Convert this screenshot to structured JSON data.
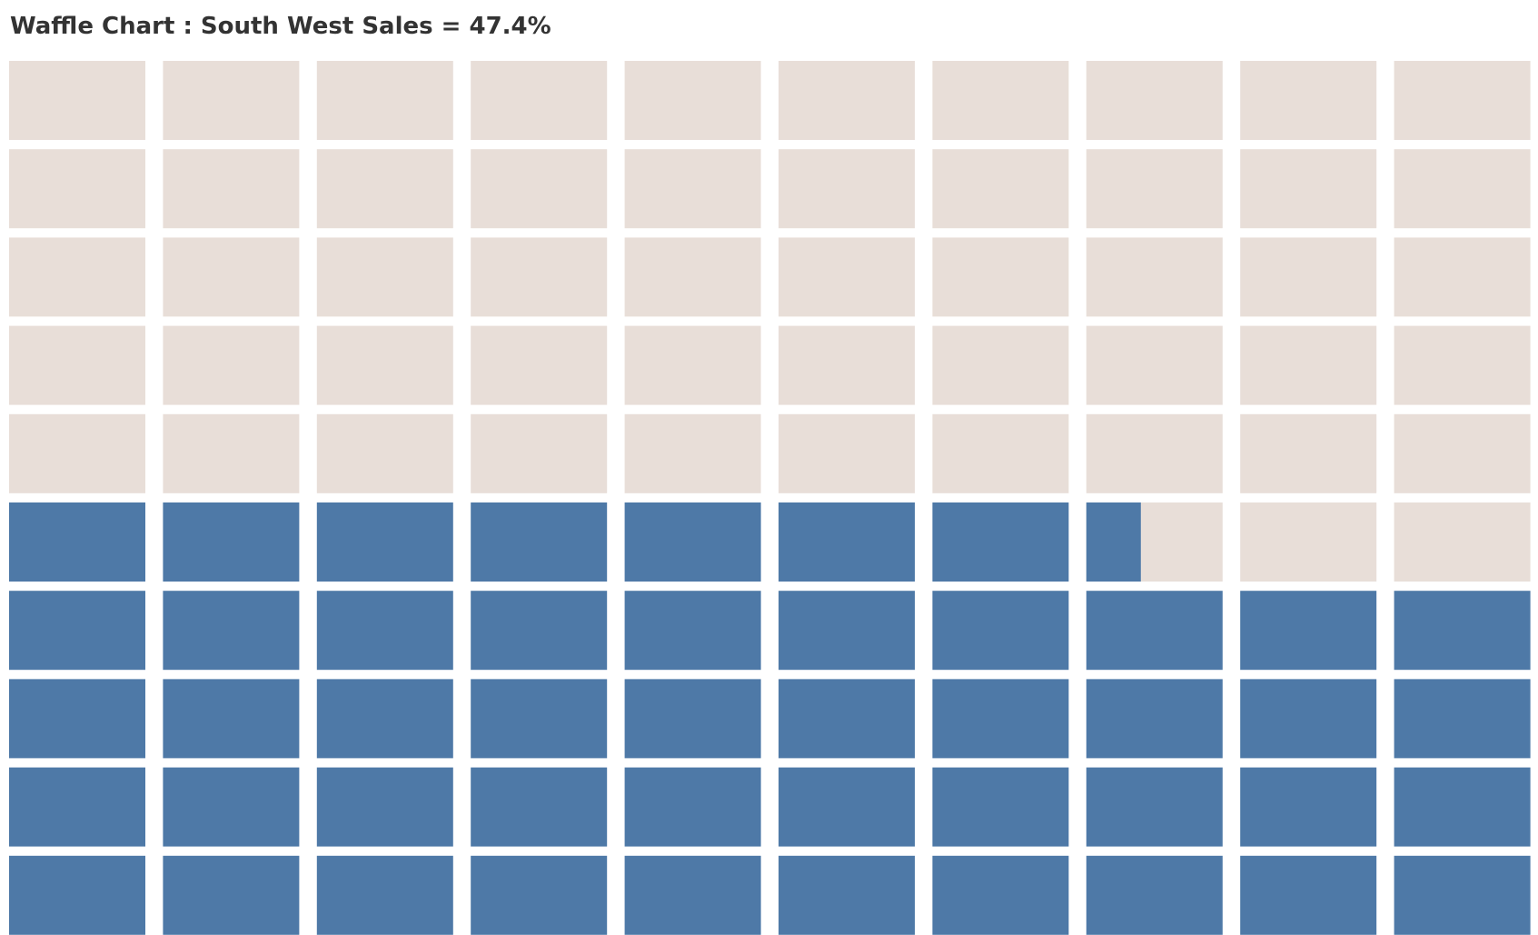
{
  "chart_data": {
    "type": "waffle",
    "title": "Waffle Chart : South West Sales = 47.4%",
    "value_percent": 47.4,
    "grid": {
      "rows": 10,
      "columns": 10,
      "total_cells": 100
    },
    "fill_order": "bottom-up, left-to-right",
    "colors": {
      "filled": "#4e79a7",
      "empty": "#e8ded8",
      "background": "#ffffff"
    }
  }
}
